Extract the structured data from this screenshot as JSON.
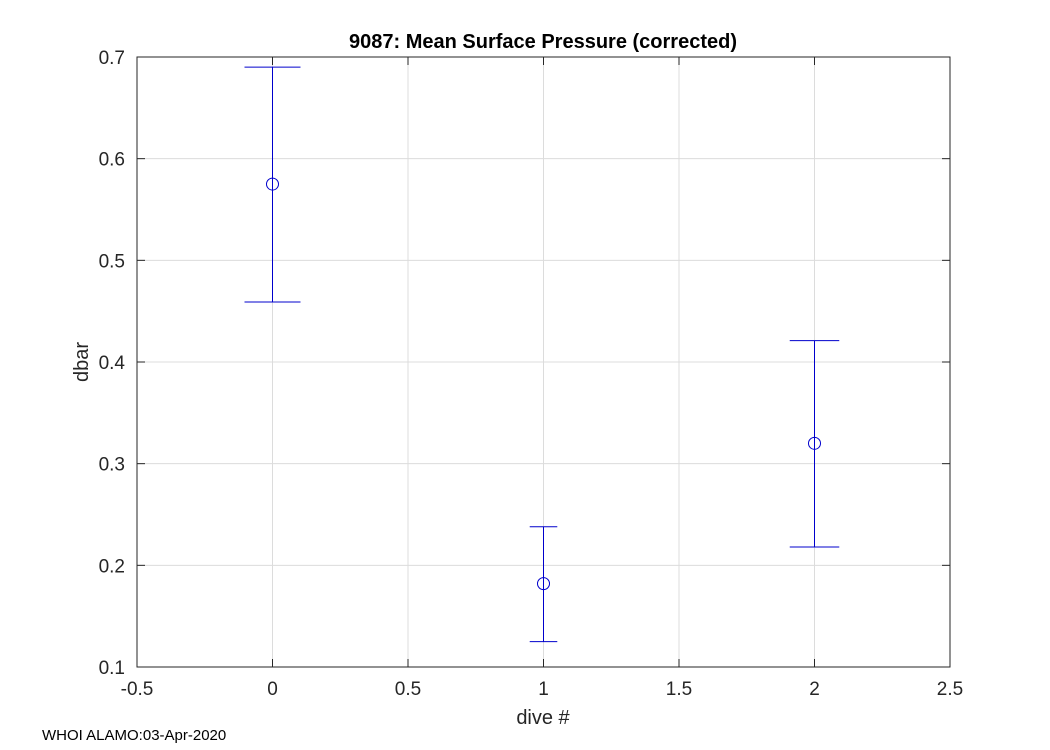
{
  "chart_data": {
    "type": "scatter",
    "title": "9087: Mean Surface Pressure (corrected)",
    "xlabel": "dive #",
    "ylabel": "dbar",
    "xlim": [
      -0.5,
      2.5
    ],
    "ylim": [
      0.1,
      0.7
    ],
    "xticks": [
      -0.5,
      0,
      0.5,
      1,
      1.5,
      2,
      2.5
    ],
    "xtick_labels": [
      "-0.5",
      "0",
      "0.5",
      "1",
      "1.5",
      "2",
      "2.5"
    ],
    "yticks": [
      0.1,
      0.2,
      0.3,
      0.4,
      0.5,
      0.6,
      0.7
    ],
    "ytick_labels": [
      "0.1",
      "0.2",
      "0.3",
      "0.4",
      "0.5",
      "0.6",
      "0.7"
    ],
    "grid": true,
    "marker": "circle",
    "series": [
      {
        "color": "#0000cc",
        "points": [
          {
            "x": 0,
            "y": 0.575,
            "lower": 0.459,
            "upper": 0.69
          },
          {
            "x": 1,
            "y": 0.182,
            "lower": 0.125,
            "upper": 0.238
          },
          {
            "x": 2,
            "y": 0.32,
            "lower": 0.218,
            "upper": 0.421
          }
        ]
      }
    ]
  },
  "footer": "WHOI ALAMO:03-Apr-2020"
}
